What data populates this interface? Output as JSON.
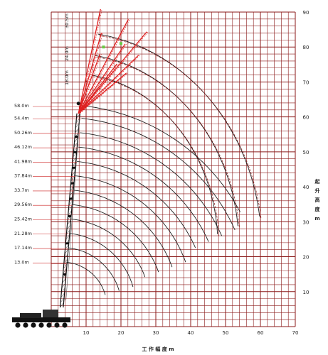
{
  "diagram": {
    "type": "crane-working-range-chart",
    "x_axis": {
      "title": "工 作 幅 度 m",
      "ticks": [
        "10",
        "20",
        "30",
        "40",
        "50",
        "60",
        "70"
      ],
      "min": 0,
      "max": 70
    },
    "y_axis": {
      "title_chars": [
        "起",
        "升",
        "高",
        "度",
        "m"
      ],
      "ticks": [
        "10",
        "20",
        "30",
        "40",
        "50",
        "60",
        "70",
        "80",
        "90"
      ],
      "min": 0,
      "max": 90
    },
    "boom_lengths": [
      "58.0m",
      "54.4m",
      "50.26m",
      "46.12m",
      "41.98m",
      "37.84m",
      "33.7m",
      "29.56m",
      "25.42m",
      "21.28m",
      "17.14m",
      "13.0m"
    ],
    "jib_labels": [
      "30.5m",
      "24.0m",
      "18.0m"
    ],
    "colors": {
      "grid": "#8b1a1a",
      "jib": "#e02020",
      "arc": "#222222",
      "jib_arc": "#8b1a1a",
      "marker": "#66cc44"
    }
  }
}
